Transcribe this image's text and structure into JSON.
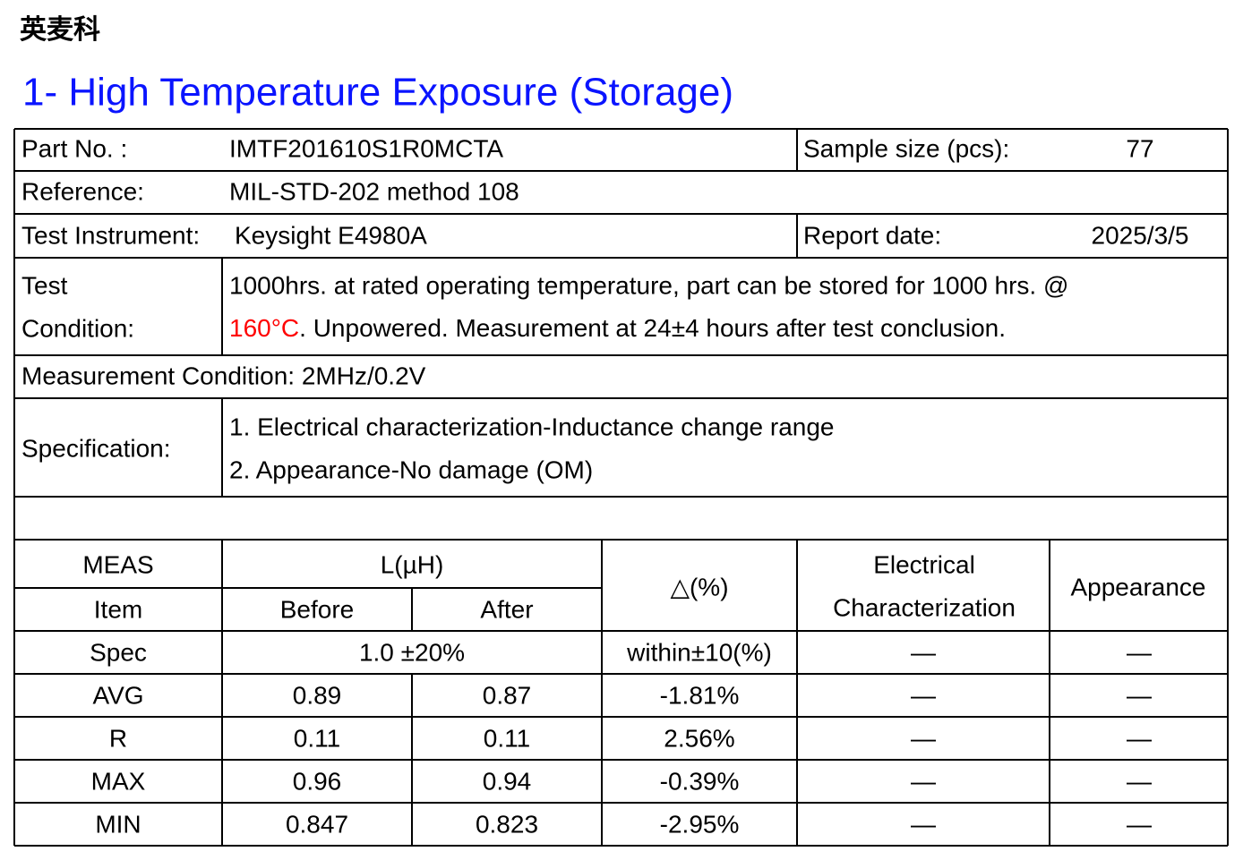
{
  "header": {
    "brand": "英麦科",
    "title": "1- High Temperature Exposure (Storage)"
  },
  "info": {
    "part_no": {
      "label": "Part No. :",
      "value": "IMTF201610S1R0MCTA"
    },
    "sample_size": {
      "label": "Sample size (pcs):",
      "value": "77"
    },
    "reference": {
      "label": "Reference:",
      "value": "MIL-STD-202 method 108"
    },
    "instrument": {
      "label": "Test Instrument:",
      "value": "Keysight E4980A"
    },
    "report_date": {
      "label": "Report date:",
      "value": "2025/3/5"
    },
    "test_condition": {
      "label": [
        "Test",
        "Condition:"
      ],
      "line1": "1000hrs. at rated operating temperature, part can be stored for 1000 hrs. @",
      "temperature": "160°C",
      "line2": ". Unpowered. Measurement at 24±4 hours after test conclusion."
    },
    "measurement_condition": "Measurement Condition: 2MHz/0.2V",
    "specification": {
      "label": "Specification:",
      "items": [
        "1. Electrical characterization-Inductance change range",
        "2. Appearance-No damage (OM)"
      ]
    }
  },
  "table": {
    "header": {
      "meas": "MEAS",
      "item": "Item",
      "l": "L(µH)",
      "before": "Before",
      "after": "After",
      "delta": "△(%)",
      "electrical": [
        "Electrical",
        "Characterization"
      ],
      "appearance": "Appearance"
    },
    "spec_row": [
      "Spec",
      "1.0 ±20%",
      "within±10(%)",
      "—",
      "—"
    ],
    "rows": [
      [
        "AVG",
        "0.89",
        "0.87",
        "-1.81%",
        "—",
        "—"
      ],
      [
        "R",
        "0.11",
        "0.11",
        "2.56%",
        "—",
        "—"
      ],
      [
        "MAX",
        "0.96",
        "0.94",
        "-0.39%",
        "—",
        "—"
      ],
      [
        "MIN",
        "0.847",
        "0.823",
        "-2.95%",
        "—",
        "—"
      ]
    ]
  }
}
